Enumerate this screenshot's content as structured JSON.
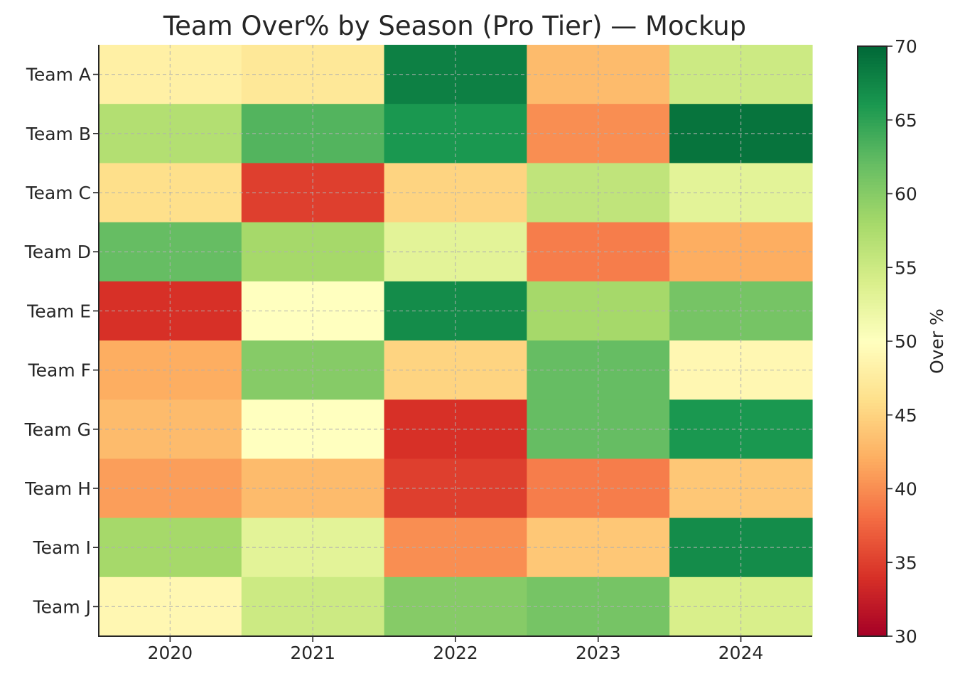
{
  "chart_data": {
    "type": "heatmap",
    "title": "Team Over% by Season (Pro Tier) — Mockup",
    "x_categories": [
      "2020",
      "2021",
      "2022",
      "2023",
      "2024"
    ],
    "y_categories": [
      "Team A",
      "Team B",
      "Team C",
      "Team D",
      "Team E",
      "Team F",
      "Team G",
      "Team H",
      "Team I",
      "Team J"
    ],
    "values": [
      [
        48,
        47,
        68,
        43,
        55
      ],
      [
        57,
        63,
        66,
        40,
        69
      ],
      [
        46,
        35,
        45,
        56,
        53
      ],
      [
        62,
        58,
        53,
        39,
        42
      ],
      [
        34,
        50,
        67,
        58,
        61
      ],
      [
        42,
        60,
        45,
        62,
        49
      ],
      [
        43,
        50,
        34,
        62,
        66
      ],
      [
        41,
        43,
        35,
        39,
        44
      ],
      [
        58,
        53,
        40,
        44,
        67
      ],
      [
        49,
        55,
        60,
        61,
        54
      ]
    ],
    "colorbar": {
      "label": "Over %",
      "min": 30,
      "max": 70,
      "ticks": [
        "30",
        "35",
        "40",
        "45",
        "50",
        "55",
        "60",
        "65",
        "70"
      ],
      "colormap": "RdYlGn"
    },
    "grid": true,
    "grid_style": "dashed"
  }
}
